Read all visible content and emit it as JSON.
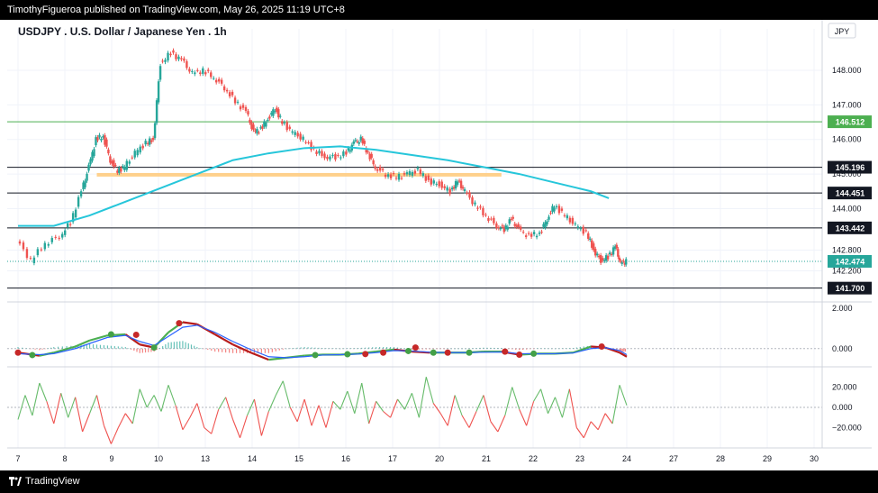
{
  "header": {
    "publish_line": "TimothyFigueroa published on TradingView.com, May 26, 2025 11:19 UTC+8"
  },
  "footer": {
    "brand": "TradingView"
  },
  "chart_data": {
    "type": "line",
    "title": "USDJPY . U.S. Dollar / Japanese Yen . 1h",
    "currency_label": "JPY",
    "x": [
      "7",
      "8",
      "9",
      "10",
      "13",
      "14",
      "15",
      "16",
      "17",
      "20",
      "21",
      "22",
      "23",
      "24",
      "27",
      "28",
      "29",
      "30"
    ],
    "price_axis": {
      "ticks": [
        "148.000",
        "147.000",
        "146.000",
        "145.000",
        "144.000",
        "142.800",
        "142.200"
      ],
      "ylim": [
        141.3,
        149.2
      ]
    },
    "price_series": {
      "type": "candlestick_approx",
      "points": [
        [
          7,
          143.1
        ],
        [
          7.4,
          142.5
        ],
        [
          7.8,
          143.0
        ],
        [
          8.2,
          143.2
        ],
        [
          8.5,
          143.6
        ],
        [
          8.8,
          144.5
        ],
        [
          9,
          145.2
        ],
        [
          9.2,
          146.0
        ],
        [
          9.4,
          146.1
        ],
        [
          9.6,
          145.4
        ],
        [
          9.8,
          145.1
        ],
        [
          10,
          145.2
        ],
        [
          10.3,
          145.6
        ],
        [
          10.6,
          145.9
        ],
        [
          10.8,
          146.0
        ],
        [
          11,
          148.2
        ],
        [
          11.3,
          148.5
        ],
        [
          11.6,
          148.3
        ],
        [
          11.9,
          147.9
        ],
        [
          12.2,
          148.0
        ],
        [
          12.5,
          147.8
        ],
        [
          12.8,
          147.5
        ],
        [
          13.1,
          147.1
        ],
        [
          13.4,
          146.8
        ],
        [
          13.6,
          146.2
        ],
        [
          13.8,
          146.3
        ],
        [
          14,
          146.6
        ],
        [
          14.2,
          146.9
        ],
        [
          14.4,
          146.5
        ],
        [
          14.7,
          146.2
        ],
        [
          15,
          146.0
        ],
        [
          15.3,
          145.7
        ],
        [
          15.6,
          145.5
        ],
        [
          15.9,
          145.5
        ],
        [
          16.2,
          145.6
        ],
        [
          16.4,
          145.9
        ],
        [
          16.6,
          146.0
        ],
        [
          16.8,
          145.6
        ],
        [
          17,
          145.2
        ],
        [
          17.3,
          145.0
        ],
        [
          17.6,
          144.9
        ],
        [
          17.9,
          145.0
        ],
        [
          18.2,
          145.1
        ],
        [
          18.5,
          144.8
        ],
        [
          18.8,
          144.7
        ],
        [
          19.1,
          144.5
        ],
        [
          19.3,
          144.8
        ],
        [
          19.5,
          144.5
        ],
        [
          19.8,
          144.1
        ],
        [
          20.1,
          143.8
        ],
        [
          20.4,
          143.5
        ],
        [
          20.6,
          143.4
        ],
        [
          20.8,
          143.7
        ],
        [
          21,
          143.4
        ],
        [
          21.3,
          143.2
        ],
        [
          21.6,
          143.3
        ],
        [
          21.8,
          143.7
        ],
        [
          22,
          144.1
        ],
        [
          22.3,
          143.8
        ],
        [
          22.6,
          143.5
        ],
        [
          22.9,
          143.3
        ],
        [
          23.1,
          142.8
        ],
        [
          23.3,
          142.5
        ],
        [
          23.5,
          142.6
        ],
        [
          23.7,
          142.9
        ],
        [
          23.85,
          142.4
        ],
        [
          24,
          142.474
        ]
      ],
      "last": "142.474"
    },
    "moving_average": {
      "points": [
        [
          7,
          143.5
        ],
        [
          8,
          143.5
        ],
        [
          9,
          143.8
        ],
        [
          10,
          144.2
        ],
        [
          11,
          144.6
        ],
        [
          12,
          145.0
        ],
        [
          13,
          145.4
        ],
        [
          14,
          145.6
        ],
        [
          15,
          145.75
        ],
        [
          16,
          145.8
        ],
        [
          17,
          145.7
        ],
        [
          18,
          145.55
        ],
        [
          19,
          145.4
        ],
        [
          20,
          145.2
        ],
        [
          21,
          145.0
        ],
        [
          22,
          144.75
        ],
        [
          23,
          144.5
        ],
        [
          23.5,
          144.3
        ]
      ]
    },
    "horizontal_levels": [
      {
        "value": "146.512",
        "style": "green"
      },
      {
        "value": "145.196",
        "style": "dark"
      },
      {
        "value": "144.451",
        "style": "dark"
      },
      {
        "value": "143.442",
        "style": "dark"
      },
      {
        "value": "141.700",
        "style": "dark"
      }
    ],
    "zone": {
      "from_x": 9.2,
      "to_x": 20.5,
      "y_low": 144.93,
      "y_high": 145.03
    },
    "macd_panel": {
      "ticks": [
        "2.000",
        "0.000"
      ],
      "ylim": [
        -0.9,
        2.3
      ],
      "macd": [
        [
          7,
          -0.2
        ],
        [
          7.6,
          -0.35
        ],
        [
          8,
          -0.2
        ],
        [
          8.6,
          0.1
        ],
        [
          9,
          0.4
        ],
        [
          9.5,
          0.65
        ],
        [
          10,
          0.7
        ],
        [
          10.4,
          0.2
        ],
        [
          10.8,
          0.05
        ],
        [
          11.2,
          0.8
        ],
        [
          11.6,
          1.3
        ],
        [
          12,
          1.2
        ],
        [
          12.5,
          0.7
        ],
        [
          13,
          0.2
        ],
        [
          13.5,
          -0.2
        ],
        [
          14,
          -0.55
        ],
        [
          14.5,
          -0.45
        ],
        [
          15,
          -0.35
        ],
        [
          15.5,
          -0.3
        ],
        [
          16,
          -0.3
        ],
        [
          16.5,
          -0.25
        ],
        [
          17,
          -0.15
        ],
        [
          17.5,
          -0.05
        ],
        [
          18,
          -0.15
        ],
        [
          18.5,
          -0.2
        ],
        [
          19,
          -0.2
        ],
        [
          19.5,
          -0.2
        ],
        [
          20,
          -0.15
        ],
        [
          20.5,
          -0.15
        ],
        [
          21,
          -0.3
        ],
        [
          21.5,
          -0.25
        ],
        [
          22,
          -0.25
        ],
        [
          22.5,
          -0.2
        ],
        [
          23,
          0.1
        ],
        [
          23.4,
          0.05
        ],
        [
          23.8,
          -0.2
        ],
        [
          24,
          -0.4
        ]
      ],
      "signal": [
        [
          7,
          -0.25
        ],
        [
          7.6,
          -0.3
        ],
        [
          8,
          -0.25
        ],
        [
          8.6,
          0.0
        ],
        [
          9,
          0.25
        ],
        [
          9.5,
          0.55
        ],
        [
          10,
          0.65
        ],
        [
          10.4,
          0.35
        ],
        [
          10.8,
          0.15
        ],
        [
          11.2,
          0.6
        ],
        [
          11.6,
          1.05
        ],
        [
          12,
          1.15
        ],
        [
          12.5,
          0.8
        ],
        [
          13,
          0.35
        ],
        [
          13.5,
          -0.05
        ],
        [
          14,
          -0.4
        ],
        [
          14.5,
          -0.45
        ],
        [
          15,
          -0.4
        ],
        [
          15.5,
          -0.32
        ],
        [
          16,
          -0.3
        ],
        [
          16.5,
          -0.27
        ],
        [
          17,
          -0.2
        ],
        [
          17.5,
          -0.1
        ],
        [
          18,
          -0.12
        ],
        [
          18.5,
          -0.18
        ],
        [
          19,
          -0.2
        ],
        [
          19.5,
          -0.2
        ],
        [
          20,
          -0.18
        ],
        [
          20.5,
          -0.17
        ],
        [
          21,
          -0.25
        ],
        [
          21.5,
          -0.26
        ],
        [
          22,
          -0.25
        ],
        [
          22.5,
          -0.22
        ],
        [
          23,
          0.0
        ],
        [
          23.4,
          0.05
        ],
        [
          23.8,
          -0.1
        ],
        [
          24,
          -0.3
        ]
      ],
      "green_dots": [
        [
          7.4,
          -0.32
        ],
        [
          9.6,
          0.7
        ],
        [
          10.8,
          0.05
        ],
        [
          15.3,
          -0.32
        ],
        [
          16.2,
          -0.28
        ],
        [
          17.9,
          -0.12
        ],
        [
          18.6,
          -0.2
        ],
        [
          19.6,
          -0.2
        ],
        [
          21.4,
          -0.25
        ]
      ],
      "red_dots": [
        [
          7,
          -0.2
        ],
        [
          10.3,
          0.68
        ],
        [
          11.5,
          1.25
        ],
        [
          16.7,
          -0.27
        ],
        [
          17.2,
          -0.2
        ],
        [
          18.1,
          0.05
        ],
        [
          19.0,
          -0.2
        ],
        [
          20.6,
          -0.15
        ],
        [
          21.0,
          -0.3
        ],
        [
          23.3,
          0.1
        ]
      ]
    },
    "oscillator_panel": {
      "ticks": [
        "20.000",
        "0.000",
        "−20.000"
      ],
      "ylim": [
        -40,
        40
      ],
      "points": [
        [
          7,
          -12
        ],
        [
          7.2,
          12
        ],
        [
          7.4,
          -8
        ],
        [
          7.6,
          24
        ],
        [
          7.8,
          6
        ],
        [
          8,
          -16
        ],
        [
          8.2,
          14
        ],
        [
          8.4,
          -10
        ],
        [
          8.6,
          10
        ],
        [
          8.8,
          -24
        ],
        [
          9,
          -6
        ],
        [
          9.2,
          12
        ],
        [
          9.4,
          -18
        ],
        [
          9.6,
          -36
        ],
        [
          9.8,
          -20
        ],
        [
          10,
          -6
        ],
        [
          10.2,
          -16
        ],
        [
          10.4,
          18
        ],
        [
          10.6,
          0
        ],
        [
          10.8,
          12
        ],
        [
          11,
          -4
        ],
        [
          11.2,
          22
        ],
        [
          11.4,
          2
        ],
        [
          11.6,
          -22
        ],
        [
          11.8,
          -10
        ],
        [
          12,
          4
        ],
        [
          12.2,
          -20
        ],
        [
          12.4,
          -26
        ],
        [
          12.6,
          -2
        ],
        [
          12.8,
          10
        ],
        [
          13,
          -12
        ],
        [
          13.2,
          -30
        ],
        [
          13.4,
          -8
        ],
        [
          13.6,
          8
        ],
        [
          13.8,
          -28
        ],
        [
          14,
          -4
        ],
        [
          14.2,
          12
        ],
        [
          14.4,
          26
        ],
        [
          14.6,
          0
        ],
        [
          14.8,
          -14
        ],
        [
          15,
          8
        ],
        [
          15.2,
          -18
        ],
        [
          15.4,
          2
        ],
        [
          15.6,
          -20
        ],
        [
          15.8,
          6
        ],
        [
          16,
          -2
        ],
        [
          16.2,
          16
        ],
        [
          16.4,
          -6
        ],
        [
          16.6,
          24
        ],
        [
          16.8,
          -16
        ],
        [
          17,
          6
        ],
        [
          17.2,
          -4
        ],
        [
          17.4,
          -10
        ],
        [
          17.6,
          8
        ],
        [
          17.8,
          -2
        ],
        [
          18,
          14
        ],
        [
          18.2,
          -10
        ],
        [
          18.4,
          30
        ],
        [
          18.6,
          4
        ],
        [
          18.8,
          -6
        ],
        [
          19,
          -18
        ],
        [
          19.2,
          12
        ],
        [
          19.4,
          -8
        ],
        [
          19.6,
          -20
        ],
        [
          19.8,
          -4
        ],
        [
          20,
          12
        ],
        [
          20.2,
          -14
        ],
        [
          20.4,
          -24
        ],
        [
          20.6,
          -8
        ],
        [
          20.8,
          20
        ],
        [
          21,
          -2
        ],
        [
          21.2,
          -18
        ],
        [
          21.4,
          6
        ],
        [
          21.6,
          18
        ],
        [
          21.8,
          -6
        ],
        [
          22,
          10
        ],
        [
          22.2,
          -10
        ],
        [
          22.4,
          18
        ],
        [
          22.6,
          -20
        ],
        [
          22.8,
          -30
        ],
        [
          23,
          -14
        ],
        [
          23.2,
          -22
        ],
        [
          23.4,
          -6
        ],
        [
          23.6,
          -16
        ],
        [
          23.8,
          22
        ],
        [
          24,
          2
        ]
      ]
    }
  }
}
